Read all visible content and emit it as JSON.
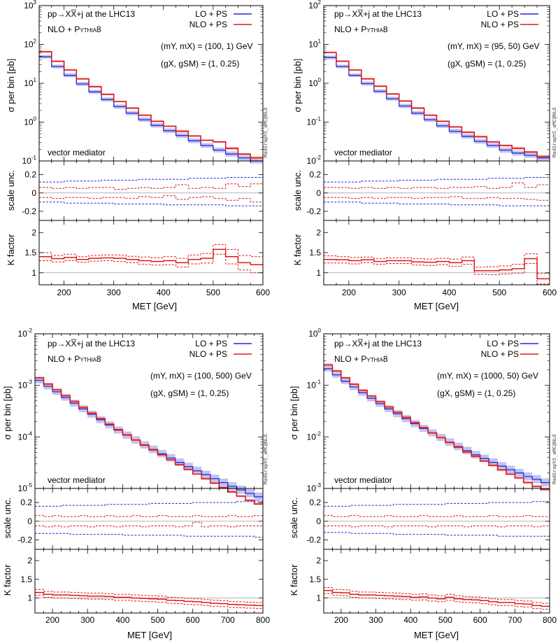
{
  "figure": {
    "colors": {
      "lo": "#1f2bd6",
      "nlo": "#e01818",
      "lo_band": "#b9b9ee",
      "nlo_band": "#f2aaaa",
      "ref": "#9a9a9a"
    },
    "common": {
      "process_label": "pp→XX̅+j at the LHC13",
      "shower_label_nlo": "NLO + ",
      "shower_label_pythia": "Pythia8",
      "legend_lo": "LO + PS",
      "legend_nlo": "NLO + PS",
      "mediator_label": "vector mediator",
      "watermark": "MadGraph5_aMC@NLO",
      "ylabel_main": "σ per bin [pb]",
      "ylabel_scale": "scale unc.",
      "ylabel_k": "K factor",
      "xlabel": "MET [GeV]",
      "couplings_label": "(gX, gSM) = (1, 0.25)"
    }
  },
  "chart_data": [
    {
      "type": "line",
      "title": "pp→XX̅+j at the LHC13, NLO + Pythia8",
      "params_label": "(mY, mX) = (100, 1) GeV",
      "xlabel": "MET [GeV]",
      "ylabel": "σ per bin [pb]",
      "xlim": [
        150,
        600
      ],
      "xticks": [
        200,
        300,
        400,
        500,
        600
      ],
      "ylim_exp": [
        -1,
        3
      ],
      "bin_edges": [
        150,
        175,
        200,
        225,
        250,
        275,
        300,
        325,
        350,
        375,
        400,
        425,
        450,
        475,
        500,
        525,
        550,
        575,
        600
      ],
      "series": [
        {
          "name": "LO + PS",
          "values": [
            48,
            27,
            16,
            9.6,
            6.0,
            3.8,
            2.5,
            1.7,
            1.15,
            0.82,
            0.6,
            0.45,
            0.33,
            0.25,
            0.19,
            0.15,
            0.12,
            0.1
          ]
        },
        {
          "name": "NLO + PS",
          "values": [
            65,
            37,
            22,
            13,
            8.2,
            5.2,
            3.4,
            2.3,
            1.5,
            1.05,
            0.78,
            0.58,
            0.44,
            0.34,
            0.31,
            0.21,
            0.15,
            0.12
          ]
        }
      ],
      "scale_unc": {
        "lo_up": [
          0.12,
          0.12,
          0.13,
          0.13,
          0.13,
          0.14,
          0.14,
          0.14,
          0.15,
          0.15,
          0.15,
          0.15,
          0.16,
          0.16,
          0.16,
          0.17,
          0.17,
          0.17
        ],
        "lo_down": [
          -0.1,
          -0.1,
          -0.11,
          -0.11,
          -0.11,
          -0.11,
          -0.12,
          -0.12,
          -0.12,
          -0.12,
          -0.13,
          -0.13,
          -0.13,
          -0.13,
          -0.13,
          -0.14,
          -0.14,
          -0.14
        ],
        "nlo_up": [
          0.06,
          0.05,
          0.06,
          0.05,
          0.06,
          0.06,
          0.04,
          0.05,
          0.06,
          0.05,
          0.06,
          0.09,
          0.05,
          0.06,
          0.05,
          0.1,
          0.07,
          0.1
        ],
        "nlo_down": [
          -0.05,
          -0.06,
          -0.05,
          -0.05,
          -0.06,
          -0.05,
          -0.05,
          -0.06,
          -0.04,
          -0.05,
          -0.03,
          -0.07,
          -0.05,
          -0.04,
          -0.06,
          -0.08,
          -0.06,
          -0.1
        ]
      },
      "k_factor": {
        "ylim": [
          0.7,
          2.3
        ],
        "yticks": [
          1,
          1.5,
          2
        ],
        "values": [
          1.4,
          1.35,
          1.38,
          1.33,
          1.36,
          1.37,
          1.36,
          1.33,
          1.3,
          1.28,
          1.3,
          1.25,
          1.33,
          1.36,
          1.58,
          1.4,
          1.25,
          1.2
        ],
        "unc": [
          0.1,
          0.08,
          0.08,
          0.07,
          0.07,
          0.07,
          0.08,
          0.08,
          0.09,
          0.09,
          0.1,
          0.11,
          0.11,
          0.12,
          0.12,
          0.18,
          0.18,
          0.2
        ]
      }
    },
    {
      "type": "line",
      "title": "pp→XX̅+j at the LHC13, NLO + Pythia8",
      "params_label": "(mY, mX) = (95, 50) GeV",
      "xlabel": "MET [GeV]",
      "ylabel": "σ per bin [pb]",
      "xlim": [
        150,
        600
      ],
      "xticks": [
        200,
        300,
        400,
        500,
        600
      ],
      "ylim_exp": [
        -2,
        2
      ],
      "bin_edges": [
        150,
        175,
        200,
        225,
        250,
        275,
        300,
        325,
        350,
        375,
        400,
        425,
        450,
        475,
        500,
        525,
        550,
        575,
        600
      ],
      "series": [
        {
          "name": "LO + PS",
          "values": [
            4.6,
            2.7,
            1.6,
            0.98,
            0.62,
            0.4,
            0.26,
            0.17,
            0.115,
            0.08,
            0.058,
            0.043,
            0.032,
            0.025,
            0.019,
            0.016,
            0.014,
            0.012
          ]
        },
        {
          "name": "NLO + PS",
          "values": [
            6.2,
            3.7,
            2.2,
            1.3,
            0.84,
            0.53,
            0.35,
            0.23,
            0.15,
            0.105,
            0.075,
            0.055,
            0.042,
            0.031,
            0.025,
            0.021,
            0.017,
            0.013
          ]
        }
      ],
      "scale_unc": {
        "lo_up": [
          0.12,
          0.12,
          0.12,
          0.13,
          0.13,
          0.13,
          0.14,
          0.14,
          0.14,
          0.15,
          0.15,
          0.15,
          0.15,
          0.16,
          0.16,
          0.16,
          0.17,
          0.17
        ],
        "lo_down": [
          -0.1,
          -0.1,
          -0.1,
          -0.11,
          -0.11,
          -0.11,
          -0.12,
          -0.12,
          -0.12,
          -0.12,
          -0.13,
          -0.13,
          -0.13,
          -0.13,
          -0.14,
          -0.14,
          -0.14,
          -0.14
        ],
        "nlo_up": [
          0.06,
          0.06,
          0.05,
          0.06,
          0.05,
          0.06,
          0.05,
          0.06,
          0.06,
          0.05,
          0.06,
          0.06,
          0.07,
          0.05,
          0.06,
          0.11,
          0.06,
          0.09
        ],
        "nlo_down": [
          -0.05,
          -0.05,
          -0.06,
          -0.05,
          -0.06,
          -0.05,
          -0.05,
          -0.06,
          -0.05,
          -0.05,
          -0.04,
          -0.06,
          -0.06,
          -0.05,
          -0.06,
          -0.06,
          -0.07,
          -0.08
        ]
      },
      "k_factor": {
        "ylim": [
          0.7,
          2.3
        ],
        "yticks": [
          1,
          1.5,
          2
        ],
        "values": [
          1.33,
          1.32,
          1.3,
          1.32,
          1.28,
          1.3,
          1.3,
          1.27,
          1.26,
          1.28,
          1.25,
          1.3,
          1.05,
          1.05,
          1.07,
          1.1,
          1.35,
          0.85
        ],
        "unc": [
          0.09,
          0.08,
          0.08,
          0.07,
          0.07,
          0.07,
          0.07,
          0.08,
          0.08,
          0.08,
          0.09,
          0.09,
          0.09,
          0.1,
          0.1,
          0.11,
          0.12,
          0.13
        ]
      }
    },
    {
      "type": "line",
      "title": "pp→XX̅+j at the LHC13, NLO + Pythia8",
      "params_label": "(mY, mX) = (100, 500) GeV",
      "xlabel": "MET [GeV]",
      "ylabel": "σ per bin [pb]",
      "xlim": [
        150,
        800
      ],
      "xticks": [
        200,
        300,
        400,
        500,
        600,
        700,
        800
      ],
      "ylim_exp": [
        -5,
        -2
      ],
      "bin_edges": [
        150,
        175,
        200,
        225,
        250,
        275,
        300,
        325,
        350,
        375,
        400,
        425,
        450,
        475,
        500,
        525,
        550,
        575,
        600,
        625,
        650,
        675,
        700,
        725,
        750,
        775,
        800
      ],
      "series": [
        {
          "name": "LO + PS",
          "values": [
            0.00125,
            0.00096,
            0.00075,
            0.00058,
            0.00045,
            0.00035,
            0.000275,
            0.000215,
            0.00017,
            0.000135,
            0.000108,
            8.7e-05,
            7e-05,
            5.7e-05,
            4.7e-05,
            3.9e-05,
            3.2e-05,
            2.65e-05,
            2.2e-05,
            1.85e-05,
            1.55e-05,
            1.3e-05,
            1.1e-05,
            9.4e-06,
            8e-06,
            6.9e-06
          ]
        },
        {
          "name": "NLO + PS",
          "values": [
            0.0014,
            0.00106,
            0.00082,
            0.00063,
            0.00049,
            0.000375,
            0.00029,
            0.000226,
            0.000177,
            0.000139,
            0.00011,
            8.7e-05,
            6.9e-05,
            5.6e-05,
            4.5e-05,
            3.6e-05,
            2.9e-05,
            2.35e-05,
            1.9e-05,
            1.55e-05,
            1.27e-05,
            1.04e-05,
            8.6e-06,
            7.1e-06,
            5.9e-06,
            5e-06
          ]
        }
      ],
      "scale_unc": {
        "lo_up": [
          0.16,
          0.16,
          0.16,
          0.17,
          0.17,
          0.17,
          0.17,
          0.17,
          0.18,
          0.18,
          0.18,
          0.18,
          0.18,
          0.19,
          0.19,
          0.19,
          0.19,
          0.19,
          0.2,
          0.2,
          0.2,
          0.2,
          0.2,
          0.21,
          0.21,
          0.21
        ],
        "lo_down": [
          -0.13,
          -0.13,
          -0.13,
          -0.13,
          -0.14,
          -0.14,
          -0.14,
          -0.14,
          -0.14,
          -0.14,
          -0.15,
          -0.15,
          -0.15,
          -0.15,
          -0.15,
          -0.15,
          -0.15,
          -0.16,
          -0.16,
          -0.16,
          -0.16,
          -0.16,
          -0.16,
          -0.16,
          -0.16,
          -0.17
        ],
        "nlo_up": [
          0.06,
          0.05,
          0.06,
          0.05,
          0.05,
          0.06,
          0.05,
          0.05,
          0.06,
          0.05,
          0.05,
          0.06,
          0.05,
          0.05,
          0.06,
          0.05,
          0.05,
          0.05,
          0.06,
          0.05,
          0.05,
          0.05,
          0.06,
          0.05,
          0.05,
          0.06
        ],
        "nlo_down": [
          -0.05,
          -0.06,
          -0.05,
          -0.06,
          -0.05,
          -0.05,
          -0.06,
          -0.05,
          -0.05,
          -0.06,
          -0.05,
          -0.05,
          -0.06,
          -0.05,
          -0.05,
          -0.05,
          -0.06,
          -0.05,
          -0.01,
          -0.06,
          -0.05,
          -0.05,
          -0.06,
          -0.05,
          -0.05,
          -0.05
        ]
      },
      "k_factor": {
        "ylim": [
          0.6,
          2.3
        ],
        "yticks": [
          1,
          1.5,
          2
        ],
        "values": [
          1.15,
          1.1,
          1.08,
          1.08,
          1.07,
          1.06,
          1.05,
          1.05,
          1.04,
          1.02,
          1.02,
          1.0,
          0.99,
          0.98,
          0.97,
          0.94,
          0.93,
          0.91,
          0.9,
          0.88,
          0.86,
          0.85,
          0.83,
          0.82,
          0.81,
          0.8
        ]
      }
    },
    {
      "type": "line",
      "title": "pp→XX̅+j at the LHC13, NLO + Pythia8",
      "params_label": "(mY, mX) = (1000, 50) GeV",
      "xlabel": "MET [GeV]",
      "ylabel": "σ per bin [pb]",
      "xlim": [
        150,
        800
      ],
      "xticks": [
        200,
        300,
        400,
        500,
        600,
        700,
        800
      ],
      "ylim_exp": [
        -3,
        0
      ],
      "bin_edges": [
        150,
        175,
        200,
        225,
        250,
        275,
        300,
        325,
        350,
        375,
        400,
        425,
        450,
        475,
        500,
        525,
        550,
        575,
        600,
        625,
        650,
        675,
        700,
        725,
        750,
        775,
        800
      ],
      "series": [
        {
          "name": "LO + PS",
          "values": [
            0.21,
            0.16,
            0.12,
            0.093,
            0.072,
            0.056,
            0.044,
            0.035,
            0.028,
            0.0225,
            0.018,
            0.0146,
            0.0119,
            0.0097,
            0.0079,
            0.0065,
            0.0054,
            0.0045,
            0.0038,
            0.0032,
            0.0027,
            0.0023,
            0.002,
            0.0017,
            0.0015,
            0.0013
          ]
        },
        {
          "name": "NLO + PS",
          "values": [
            0.25,
            0.19,
            0.14,
            0.105,
            0.08,
            0.062,
            0.048,
            0.038,
            0.03,
            0.024,
            0.019,
            0.0151,
            0.012,
            0.0097,
            0.0078,
            0.0063,
            0.0051,
            0.0042,
            0.0034,
            0.0028,
            0.0023,
            0.0019,
            0.0016,
            0.0013,
            0.0011,
            0.00095
          ]
        }
      ],
      "scale_unc": {
        "lo_up": [
          0.16,
          0.16,
          0.16,
          0.17,
          0.17,
          0.17,
          0.17,
          0.17,
          0.18,
          0.18,
          0.18,
          0.18,
          0.18,
          0.18,
          0.19,
          0.19,
          0.19,
          0.19,
          0.19,
          0.2,
          0.2,
          0.2,
          0.2,
          0.2,
          0.21,
          0.21
        ],
        "lo_down": [
          -0.12,
          -0.12,
          -0.12,
          -0.13,
          -0.13,
          -0.13,
          -0.13,
          -0.13,
          -0.14,
          -0.14,
          -0.14,
          -0.14,
          -0.14,
          -0.14,
          -0.15,
          -0.15,
          -0.15,
          -0.15,
          -0.15,
          -0.15,
          -0.16,
          -0.16,
          -0.16,
          -0.16,
          -0.16,
          -0.16
        ],
        "nlo_up": [
          0.06,
          0.05,
          0.05,
          0.06,
          0.05,
          0.05,
          0.05,
          0.06,
          0.05,
          0.05,
          0.05,
          0.06,
          0.05,
          0.05,
          0.05,
          0.06,
          0.05,
          0.05,
          0.05,
          0.06,
          0.05,
          0.05,
          0.05,
          0.06,
          0.05,
          0.05
        ],
        "nlo_down": [
          -0.05,
          -0.05,
          -0.05,
          -0.06,
          -0.05,
          -0.05,
          -0.05,
          -0.06,
          -0.05,
          -0.05,
          -0.05,
          -0.05,
          -0.06,
          -0.05,
          -0.05,
          -0.05,
          -0.06,
          -0.05,
          -0.05,
          -0.05,
          -0.06,
          -0.05,
          -0.05,
          -0.05,
          -0.06,
          -0.05
        ]
      },
      "k_factor": {
        "ylim": [
          0.6,
          2.3
        ],
        "yticks": [
          1,
          1.5,
          2
        ],
        "values": [
          1.2,
          1.15,
          1.14,
          1.1,
          1.08,
          1.08,
          1.07,
          1.06,
          1.05,
          1.04,
          1.02,
          1.03,
          1.0,
          0.98,
          1.02,
          0.98,
          0.96,
          0.95,
          0.93,
          0.9,
          0.88,
          0.88,
          0.85,
          0.84,
          0.8,
          0.78
        ]
      }
    }
  ]
}
